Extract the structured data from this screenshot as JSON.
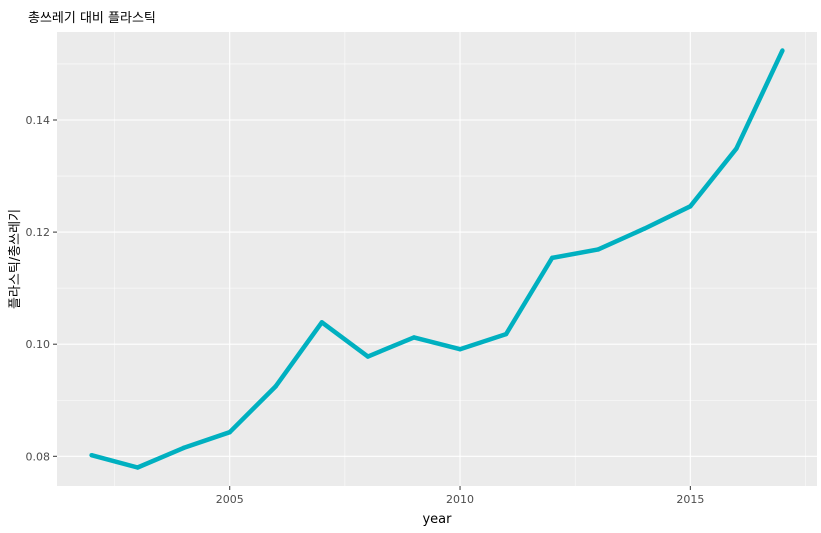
{
  "chart_data": {
    "type": "line",
    "title": "총쓰레기 대비 플라스틱",
    "xlabel": "year",
    "ylabel": "플라스틱/총쓰레기",
    "x": [
      2002,
      2003,
      2004,
      2005,
      2006,
      2007,
      2008,
      2009,
      2010,
      2011,
      2012,
      2013,
      2014,
      2015,
      2016,
      2017
    ],
    "series": [
      {
        "values": [
          0.0802,
          0.078,
          0.0815,
          0.0843,
          0.0925,
          0.1039,
          0.0978,
          0.1012,
          0.0991,
          0.1018,
          0.1154,
          0.1169,
          0.1206,
          0.1246,
          0.1349,
          0.1524
        ]
      }
    ],
    "xlim": [
      2001.25,
      2017.75
    ],
    "ylim": [
      0.0747,
      0.1557
    ],
    "x_ticks": [
      2005,
      2010,
      2015
    ],
    "x_tick_labels": [
      "2005",
      "2010",
      "2015"
    ],
    "y_ticks": [
      0.08,
      0.1,
      0.12,
      0.14
    ],
    "y_tick_labels": [
      "0.08",
      "0.10",
      "0.12",
      "0.14"
    ],
    "grid": true,
    "line_color": "#00b0c0",
    "panel_color": "#ebebeb"
  }
}
